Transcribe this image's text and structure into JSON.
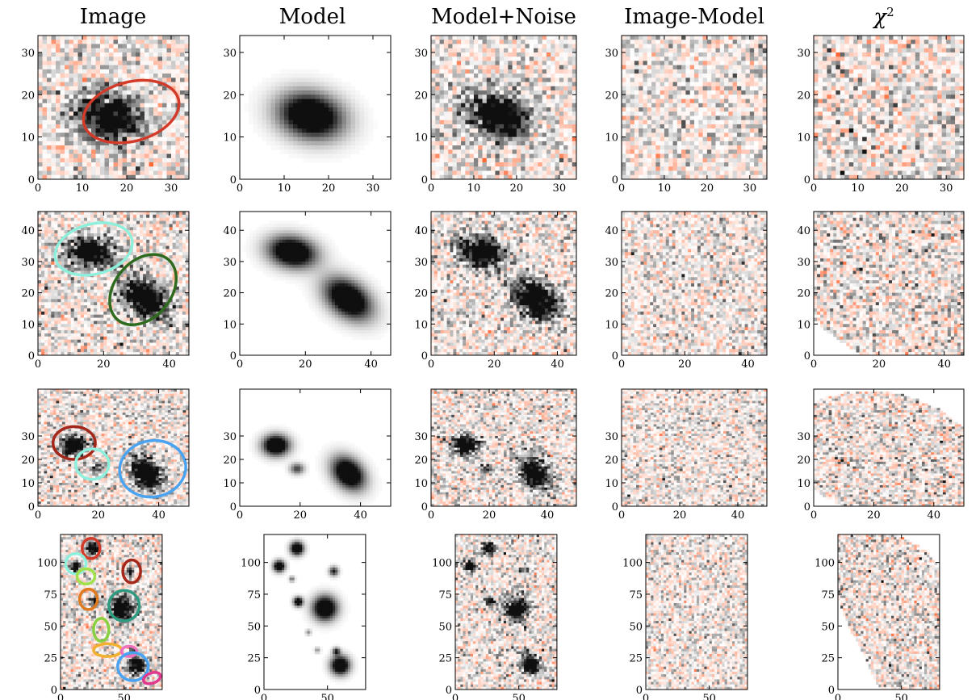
{
  "column_titles": [
    "Image",
    "Model",
    "Model+Noise",
    "Image-Model",
    "χ"
  ],
  "chi_superscript": "2",
  "rows": [
    {
      "xticks": [
        "0",
        "10",
        "20",
        "30"
      ],
      "yticks": [
        "0",
        "10",
        "20",
        "30"
      ],
      "range": 34,
      "sources": [
        {
          "x": 16,
          "y": 15,
          "a": 5,
          "b": 3.6,
          "ang": -15,
          "amp": 1
        }
      ],
      "ellipses": [
        {
          "color": "#d23a2a",
          "x": 21,
          "y": 16,
          "rx": 11,
          "ry": 7,
          "ang": -15
        }
      ]
    },
    {
      "xticks": [
        "0",
        "20",
        "40"
      ],
      "yticks": [
        "0",
        "10",
        "20",
        "30",
        "40"
      ],
      "range": 46,
      "sources": [
        {
          "x": 16,
          "y": 33,
          "a": 5,
          "b": 3.3,
          "ang": -12,
          "amp": 1
        },
        {
          "x": 33,
          "y": 18,
          "a": 5.5,
          "b": 3.6,
          "ang": -40,
          "amp": 1
        }
      ],
      "ellipses": [
        {
          "color": "#8ef0dc",
          "x": 17,
          "y": 34,
          "rx": 12,
          "ry": 8,
          "ang": -15
        },
        {
          "color": "#2e6b1e",
          "x": 32,
          "y": 21,
          "rx": 12,
          "ry": 9,
          "ang": -50
        }
      ]
    },
    {
      "xticks": [
        "0",
        "20",
        "40"
      ],
      "yticks": [
        "0",
        "10",
        "20",
        "30"
      ],
      "range": 50,
      "sources": [
        {
          "x": 12,
          "y": 26,
          "a": 3,
          "b": 3,
          "ang": 0,
          "amp": 1
        },
        {
          "x": 19,
          "y": 16,
          "a": 1.6,
          "b": 1.6,
          "ang": 0,
          "amp": 0.5
        },
        {
          "x": 36,
          "y": 14,
          "a": 5,
          "b": 3.3,
          "ang": -65,
          "amp": 1
        }
      ],
      "ellipses": [
        {
          "color": "#a3271a",
          "x": 12,
          "y": 27,
          "rx": 7,
          "ry": 7,
          "ang": 0
        },
        {
          "color": "#8ef0dc",
          "x": 18,
          "y": 18,
          "rx": 5.5,
          "ry": 6.5,
          "ang": 0
        },
        {
          "color": "#4aa3f0",
          "x": 38,
          "y": 16,
          "rx": 11,
          "ry": 12,
          "ang": -10
        }
      ]
    },
    {
      "xticks": [
        "0",
        "50"
      ],
      "yticks": [
        "0",
        "25",
        "50",
        "75",
        "100"
      ],
      "range": 80,
      "yrange": 122,
      "sources": [
        {
          "x": 26,
          "y": 111,
          "a": 3.5,
          "b": 3.5,
          "ang": 0,
          "amp": 1
        },
        {
          "x": 12,
          "y": 97,
          "a": 3,
          "b": 3,
          "ang": 0,
          "amp": 1
        },
        {
          "x": 48,
          "y": 64,
          "a": 6.5,
          "b": 6.5,
          "ang": 0,
          "amp": 1
        },
        {
          "x": 60,
          "y": 19,
          "a": 5,
          "b": 5,
          "ang": 0,
          "amp": 1
        },
        {
          "x": 27,
          "y": 69,
          "a": 2.5,
          "b": 2.5,
          "ang": 0,
          "amp": 0.9
        },
        {
          "x": 55,
          "y": 93,
          "a": 2.5,
          "b": 2.5,
          "ang": 0,
          "amp": 0.6
        },
        {
          "x": 22,
          "y": 87,
          "a": 1.5,
          "b": 1.5,
          "ang": 0,
          "amp": 0.4
        },
        {
          "x": 57,
          "y": 30,
          "a": 2,
          "b": 2,
          "ang": 0,
          "amp": 0.6
        },
        {
          "x": 42,
          "y": 31,
          "a": 1.5,
          "b": 1.5,
          "ang": 0,
          "amp": 0.3
        },
        {
          "x": 35,
          "y": 45,
          "a": 1.5,
          "b": 1.5,
          "ang": 0,
          "amp": 0.3
        }
      ],
      "ellipses": [
        {
          "color": "#d23a2a",
          "x": 24,
          "y": 111,
          "rx": 7,
          "ry": 8,
          "ang": 0
        },
        {
          "color": "#8ef0dc",
          "x": 12,
          "y": 99,
          "rx": 8,
          "ry": 8,
          "ang": 0
        },
        {
          "color": "#a0e04a",
          "x": 20,
          "y": 89,
          "rx": 7,
          "ry": 6,
          "ang": 0
        },
        {
          "color": "#a3271a",
          "x": 56,
          "y": 93,
          "rx": 7,
          "ry": 9,
          "ang": 0
        },
        {
          "color": "#e07a20",
          "x": 22,
          "y": 71,
          "rx": 7,
          "ry": 8,
          "ang": 0
        },
        {
          "color": "#2e9a80",
          "x": 50,
          "y": 66,
          "rx": 12,
          "ry": 12,
          "ang": 0
        },
        {
          "color": "#88d040",
          "x": 32,
          "y": 47,
          "rx": 6,
          "ry": 9,
          "ang": 0
        },
        {
          "color": "#f0b030",
          "x": 37,
          "y": 31,
          "rx": 11,
          "ry": 5,
          "ang": 0
        },
        {
          "color": "#f070c0",
          "x": 54,
          "y": 30,
          "rx": 6,
          "ry": 4,
          "ang": 0
        },
        {
          "color": "#4aa3f0",
          "x": 57,
          "y": 18,
          "rx": 12,
          "ry": 11,
          "ang": 0
        },
        {
          "color": "#e03a90",
          "x": 72,
          "y": 9,
          "rx": 7,
          "ry": 4,
          "ang": -20
        }
      ]
    }
  ]
}
